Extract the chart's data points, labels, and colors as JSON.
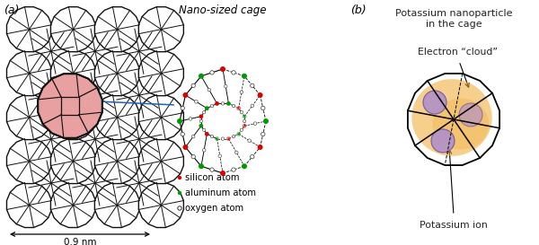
{
  "fig_width": 6.0,
  "fig_height": 2.73,
  "dpi": 100,
  "bg_color": "#ffffff",
  "label_a": "(a)",
  "label_b": "(b)",
  "nano_cage_label": "Nano-sized cage",
  "legend_silicon": "silicon atom",
  "legend_aluminum": "aluminum atom",
  "legend_oxygen": "oxygen atom",
  "dimension_label": "0.9 nm",
  "title_b": "Potassium nanoparticle\nin the cage",
  "electron_cloud_label": "Electron “cloud”",
  "potassium_ion_label": "Potassium ion",
  "sodalite_fill": "#e8a0a0",
  "sodalite_edge": "#111111",
  "cage_si_color": "#dd0000",
  "cage_al_color": "#009900",
  "cage_o_color": "#ffffff",
  "cage_o_edge": "#333333",
  "electron_cloud_color": "#f0a830",
  "electron_cloud_alpha": 0.55,
  "potassium_ion_color": "#b090c8",
  "potassium_ion_edge": "#7050a0",
  "potassium_ion_alpha": 0.9,
  "arrow_color": "#2060bb",
  "text_color": "#444444",
  "text_color_dark": "#222222"
}
